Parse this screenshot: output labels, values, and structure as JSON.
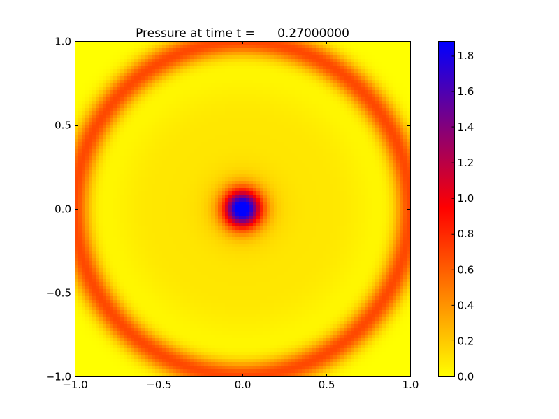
{
  "chart_data": {
    "type": "heatmap",
    "title": "Pressure at time t =      0.27000000",
    "xlabel": "",
    "ylabel": "",
    "xlim": [
      -1.0,
      1.0
    ],
    "ylim": [
      -1.0,
      1.0
    ],
    "x_ticks": [
      "−1.0",
      "−0.5",
      "0.0",
      "0.5",
      "1.0"
    ],
    "x_tick_values": [
      -1.0,
      -0.5,
      0.0,
      0.5,
      1.0
    ],
    "y_ticks": [
      "−1.0",
      "−0.5",
      "0.0",
      "0.5",
      "1.0"
    ],
    "y_tick_values": [
      -1.0,
      -0.5,
      0.0,
      0.5,
      1.0
    ],
    "grid_size": [
      96,
      96
    ],
    "field": {
      "description": "radially symmetric pressure: central peak plus expanding ring",
      "center_peak": 1.88,
      "center_width": 0.11,
      "inner_halo": 0.22,
      "inner_halo_width": 0.3,
      "ring_radius": 1.0,
      "ring_value": 0.68,
      "ring_width": 0.085
    },
    "colorbar": {
      "min": 0.0,
      "max": 1.88,
      "ticks": [
        "0.0",
        "0.2",
        "0.4",
        "0.6",
        "0.8",
        "1.0",
        "1.2",
        "1.4",
        "1.6",
        "1.8"
      ],
      "tick_values": [
        0.0,
        0.2,
        0.4,
        0.6,
        0.8,
        1.0,
        1.2,
        1.4,
        1.6,
        1.8
      ],
      "colors": [
        {
          "value": 0.0,
          "color": "#ffff00"
        },
        {
          "value": 0.95,
          "color": "#ff0000"
        },
        {
          "value": 1.88,
          "color": "#0000ff"
        }
      ]
    }
  }
}
